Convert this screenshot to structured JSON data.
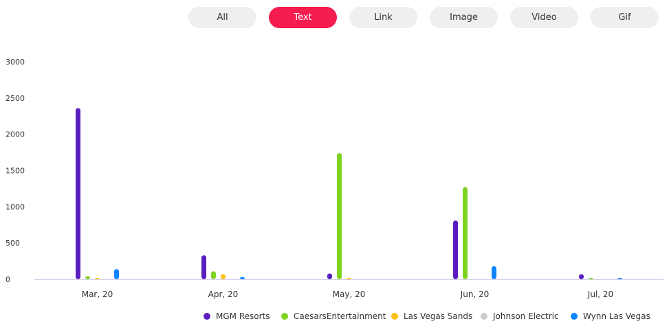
{
  "filters": {
    "buttons": [
      {
        "label": "All",
        "active": false
      },
      {
        "label": "Text",
        "active": true
      },
      {
        "label": "Link",
        "active": false
      },
      {
        "label": "Image",
        "active": false
      },
      {
        "label": "Video",
        "active": false
      },
      {
        "label": "Gif",
        "active": false
      }
    ],
    "active_color": "#f51c4e",
    "inactive_color": "#efefef"
  },
  "chart_data": {
    "type": "bar",
    "title": "",
    "xlabel": "",
    "ylabel": "",
    "ylim": [
      0,
      3000
    ],
    "yticks": [
      0,
      500,
      1000,
      1500,
      2000,
      2500,
      3000
    ],
    "grid": false,
    "legend_position": "bottom-right",
    "categories": [
      "Mar, 20",
      "Apr, 20",
      "May, 20",
      "Jun, 20",
      "Jul, 20"
    ],
    "series": [
      {
        "name": "MGM Resorts",
        "color": "#5a1ec0",
        "values": [
          2360,
          330,
          80,
          810,
          70
        ]
      },
      {
        "name": "CaesarsEntertainment",
        "color": "#7ed321",
        "values": [
          40,
          110,
          1740,
          1270,
          10
        ]
      },
      {
        "name": "Las Vegas Sands",
        "color": "#fdc010",
        "values": [
          10,
          70,
          5,
          0,
          0
        ]
      },
      {
        "name": "Johnson Electric",
        "color": "#cccccc",
        "values": [
          0,
          0,
          0,
          0,
          0
        ]
      },
      {
        "name": "Wynn Las Vegas",
        "color": "#0a84ff",
        "values": [
          140,
          30,
          0,
          180,
          10
        ]
      }
    ]
  }
}
